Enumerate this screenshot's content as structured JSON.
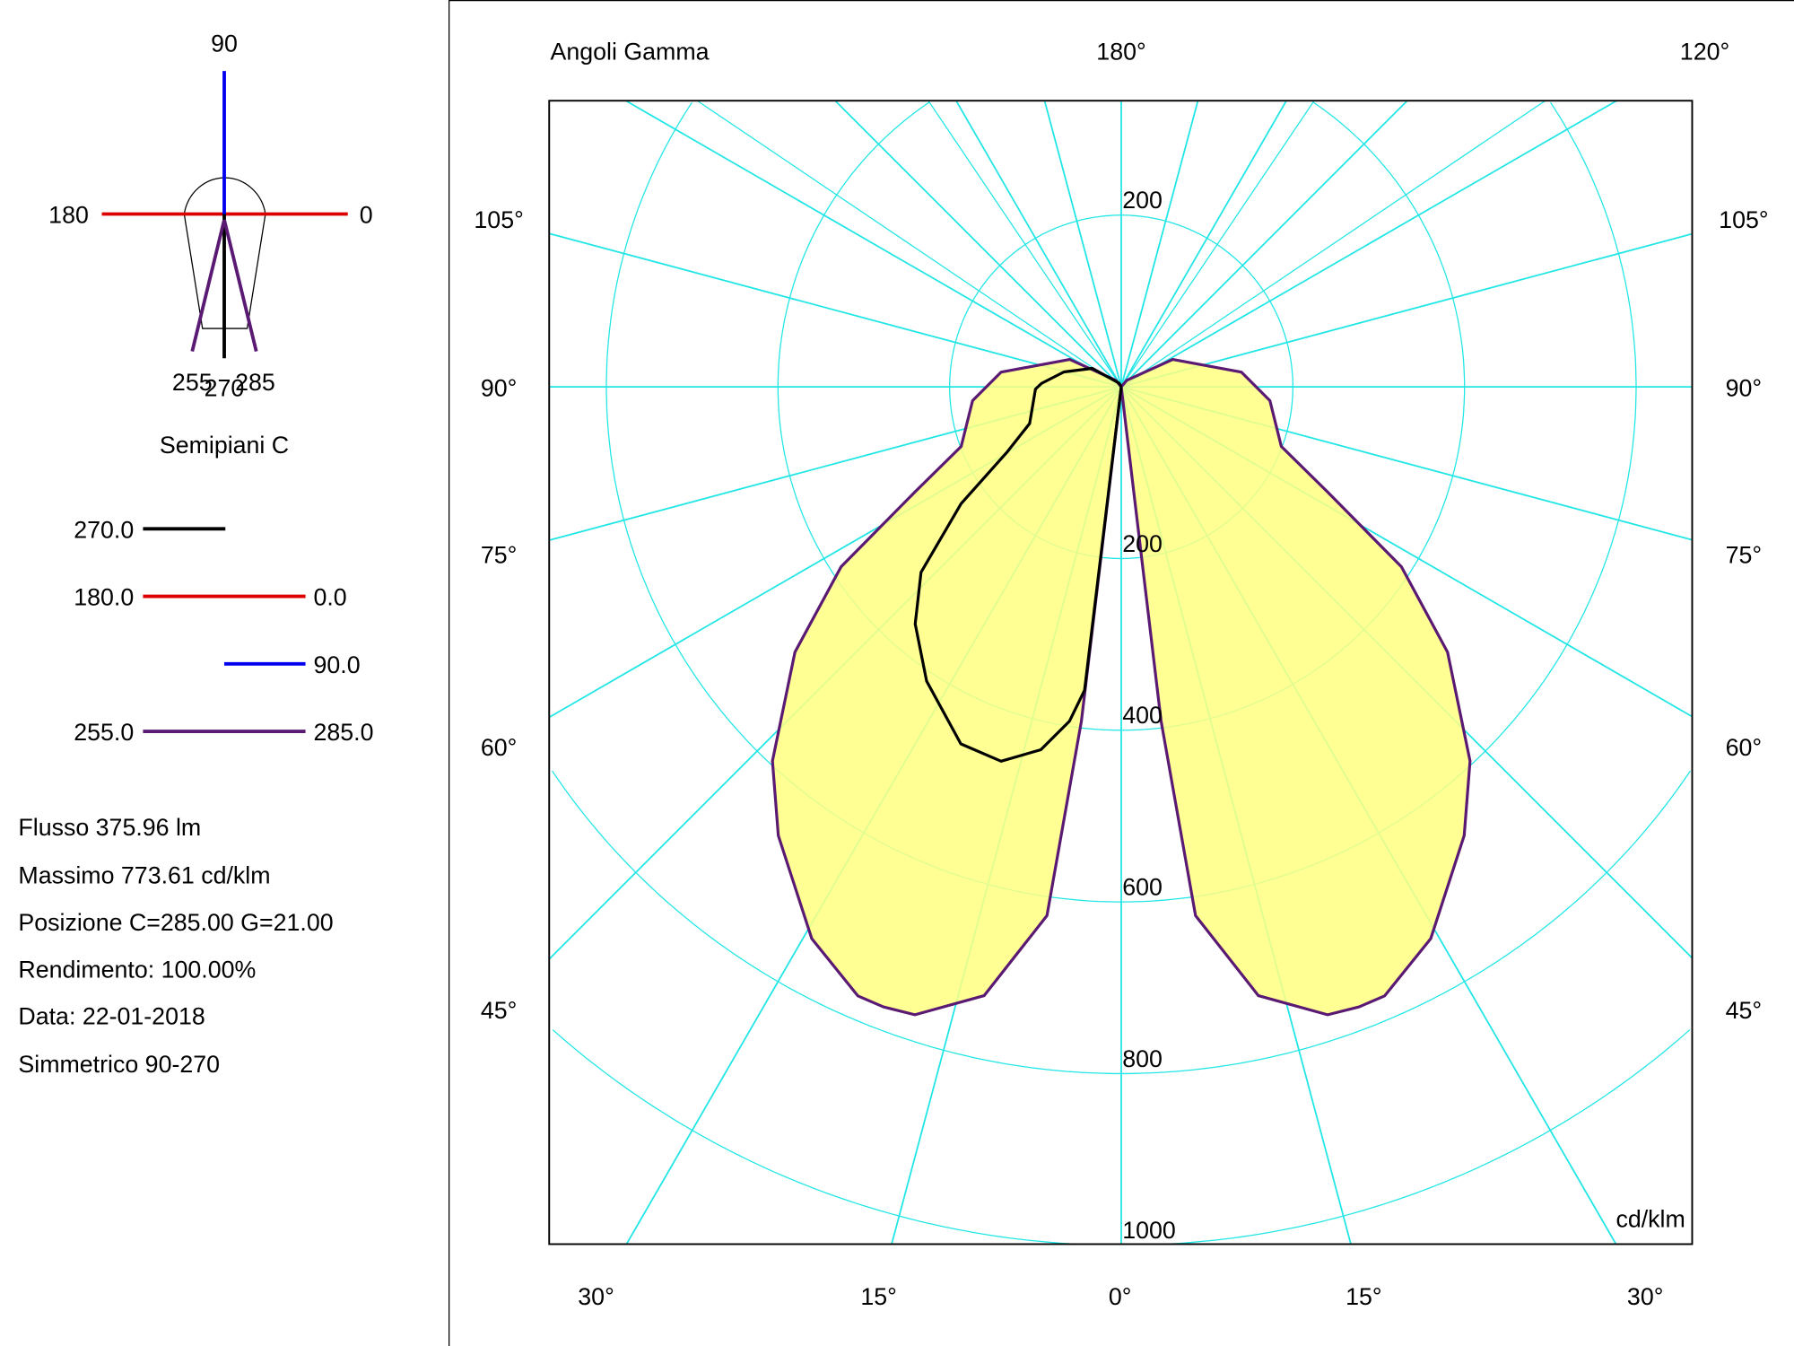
{
  "colors": {
    "c270": "#000000",
    "c0_180": "#dd0000",
    "c90": "#0000ee",
    "c255_285": "#5a1a73",
    "fill": "#ffff80",
    "grid": "#22e6e6"
  },
  "icon": {
    "label_90": "90",
    "label_180": "180",
    "label_0": "0",
    "label_255": "255",
    "label_270": "270",
    "label_285": "285"
  },
  "legend": {
    "title": "Semipiani C",
    "items": [
      {
        "left": "270.0",
        "right": ""
      },
      {
        "left": "180.0",
        "right": "0.0"
      },
      {
        "left": "",
        "right": "90.0"
      },
      {
        "left": "255.0",
        "right": "285.0"
      }
    ]
  },
  "info": [
    "Flusso 375.96  lm",
    "Massimo 773.61  cd/klm",
    "Posizione C=285.00 G=21.00",
    "Rendimento: 100.00%",
    "Data: 22-01-2018",
    "Simmetrico 90-270"
  ],
  "chart_data": {
    "type": "line",
    "coordinate_system": "polar",
    "title": "Angoli Gamma",
    "unit": "cd/klm",
    "top_labels": [
      "180°",
      "120°"
    ],
    "left_angle_labels": [
      "105°",
      "90°",
      "75°",
      "60°",
      "45°"
    ],
    "right_angle_labels": [
      "105°",
      "90°",
      "75°",
      "60°",
      "45°"
    ],
    "bottom_angle_labels": [
      "30°",
      "15°",
      "0°",
      "15°",
      "30°"
    ],
    "radial_ticks": [
      200,
      400,
      600,
      800,
      1000
    ],
    "radial_tick_labels": [
      "200",
      "200",
      "400",
      "600",
      "800",
      "1000"
    ],
    "rlim": [
      0,
      1000
    ],
    "grid": true,
    "series": [
      {
        "name": "255.0 / 285.0",
        "filled": true,
        "gamma": [
          0,
          6.8,
          8,
          12.7,
          18.2,
          21,
          23.4,
          29.3,
          37.4,
          43,
          50.9,
          57.3,
          63,
          69.6,
          84.7,
          97,
          118,
          140,
          180
        ],
        "intensity": [
          0,
          392,
          622,
          727,
          770,
          773.61,
          773,
          737,
          658,
          596,
          490,
          388,
          270,
          199,
          174,
          141,
          68,
          10,
          0
        ]
      },
      {
        "name": "270.0",
        "gamma": [
          0,
          6.9,
          8.8,
          12.5,
          17.8,
          24.2,
          33.5,
          41,
          47.2,
          53.9,
          60.3,
          68.2,
          88.5,
          92.5,
          104.6,
          122.6,
          150,
          180
        ],
        "intensity": [
          0,
          356,
          394,
          433,
          458,
          456,
          411,
          366,
          318,
          231,
          153,
          115,
          100,
          93,
          69,
          40,
          5,
          0
        ]
      }
    ]
  }
}
